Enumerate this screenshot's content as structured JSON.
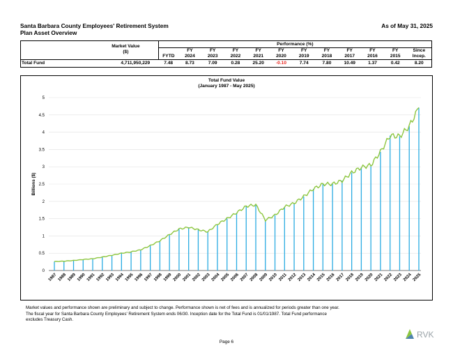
{
  "header": {
    "org": "Santa Barbara County Employees' Retirement System",
    "subtitle": "Plan Asset Overview",
    "as_of": "As of May 31, 2025"
  },
  "table": {
    "market_value_label_1": "Market Value",
    "market_value_label_2": "($)",
    "performance_label": "Performance (%)",
    "columns": [
      {
        "l1": "",
        "l2": "FYTD"
      },
      {
        "l1": "FY",
        "l2": "2024"
      },
      {
        "l1": "FY",
        "l2": "2023"
      },
      {
        "l1": "FY",
        "l2": "2022"
      },
      {
        "l1": "FY",
        "l2": "2021"
      },
      {
        "l1": "FY",
        "l2": "2020"
      },
      {
        "l1": "FY",
        "l2": "2019"
      },
      {
        "l1": "FY",
        "l2": "2018"
      },
      {
        "l1": "FY",
        "l2": "2017"
      },
      {
        "l1": "FY",
        "l2": "2016"
      },
      {
        "l1": "FY",
        "l2": "2015"
      },
      {
        "l1": "Since",
        "l2": "Incep."
      }
    ],
    "row": {
      "name": "Total Fund",
      "market_value": "4,711,950,229",
      "values": [
        "7.48",
        "8.73",
        "7.09",
        "0.28",
        "25.20",
        "-0.10",
        "7.74",
        "7.80",
        "10.49",
        "1.37",
        "0.42",
        "8.20"
      ],
      "negative_color": "#e8231c"
    }
  },
  "chart_data": {
    "type": "area",
    "title": "Total Fund Value",
    "subtitle": "(January 1987 - May 2025)",
    "ylabel": "Billions ($)",
    "ylim": [
      0,
      5
    ],
    "yticks": [
      "0",
      "0.5",
      "1",
      "1.5",
      "2",
      "2.5",
      "3",
      "3.5",
      "4",
      "4.5",
      "5"
    ],
    "x": [
      "1987",
      "1988",
      "1989",
      "1990",
      "1991",
      "1992",
      "1993",
      "1994",
      "1995",
      "1996",
      "1997",
      "1998",
      "1999",
      "2000",
      "2001",
      "2002",
      "2003",
      "2004",
      "2005",
      "2006",
      "2007",
      "2008",
      "2009",
      "2010",
      "2011",
      "2012",
      "2013",
      "2014",
      "2015",
      "2016",
      "2017",
      "2018",
      "2019",
      "2020",
      "2021",
      "2022",
      "2023",
      "2024",
      "2025"
    ],
    "series": [
      {
        "line_color": "#8dc63f",
        "bar_color": "#29abe2",
        "values": [
          0.26,
          0.27,
          0.29,
          0.32,
          0.34,
          0.39,
          0.44,
          0.5,
          0.54,
          0.6,
          0.72,
          0.86,
          1.04,
          1.2,
          1.25,
          1.18,
          1.12,
          1.34,
          1.5,
          1.67,
          1.86,
          1.9,
          1.46,
          1.6,
          1.84,
          1.95,
          2.14,
          2.36,
          2.5,
          2.5,
          2.6,
          2.83,
          2.98,
          3.05,
          3.43,
          3.9,
          3.88,
          4.17,
          4.71
        ]
      }
    ],
    "grid": true
  },
  "footnote": {
    "line1": "Market values and performance shown are preliminary and subject to change. Performance shown is net of fees and is annualized for periods greater than one year.",
    "line2": "The fiscal year for Santa Barbara County Employees' Retirement System ends 06/30. Inception date for the Total Fund is 01/01/1987. Total Fund performance",
    "line3": "excludes Treasury Cash."
  },
  "page": "Page 6",
  "logo": {
    "text": "RVK",
    "colors": [
      "#8dc63f",
      "#5a9e8f",
      "#2f6f9f"
    ]
  }
}
